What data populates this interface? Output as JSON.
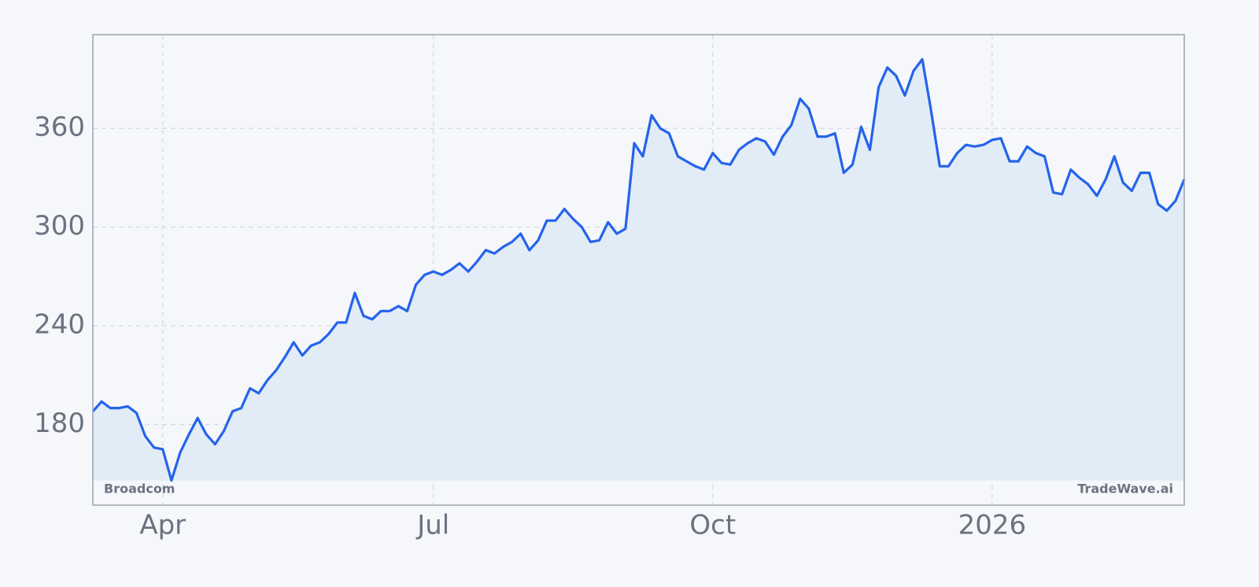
{
  "chart_data": {
    "type": "line",
    "categories": [
      null,
      null,
      null,
      null,
      null,
      null,
      null,
      null,
      "Apr",
      null,
      null,
      null,
      null,
      null,
      null,
      null,
      null,
      null,
      null,
      null,
      null,
      null,
      null,
      null,
      null,
      null,
      null,
      null,
      null,
      null,
      null,
      null,
      null,
      null,
      null,
      null,
      null,
      null,
      null,
      "Jul",
      null,
      null,
      null,
      null,
      null,
      null,
      null,
      null,
      null,
      null,
      null,
      null,
      null,
      null,
      null,
      null,
      null,
      null,
      null,
      null,
      null,
      null,
      null,
      null,
      null,
      null,
      null,
      null,
      null,
      null,
      null,
      "Oct",
      null,
      null,
      null,
      null,
      null,
      null,
      null,
      null,
      null,
      null,
      null,
      null,
      null,
      null,
      null,
      null,
      null,
      null,
      null,
      null,
      null,
      null,
      null,
      null,
      null,
      null,
      null,
      null,
      null,
      null,
      null,
      "2026",
      null,
      null,
      null,
      null,
      null,
      null,
      null,
      null,
      null,
      null,
      null,
      null,
      null,
      null,
      null,
      null,
      null,
      null,
      null,
      null,
      null,
      null
    ],
    "values": [
      188,
      194,
      190,
      190,
      191,
      187,
      173,
      166,
      165,
      146,
      163,
      174,
      184,
      174,
      168,
      176,
      188,
      190,
      202,
      199,
      207,
      213,
      221,
      230,
      222,
      228,
      230,
      235,
      242,
      242,
      260,
      246,
      244,
      249,
      249,
      252,
      249,
      265,
      271,
      273,
      271,
      274,
      278,
      273,
      279,
      286,
      284,
      288,
      291,
      296,
      286,
      292,
      304,
      304,
      311,
      305,
      300,
      291,
      292,
      303,
      296,
      299,
      351,
      343,
      368,
      360,
      357,
      343,
      340,
      337,
      335,
      345,
      339,
      338,
      347,
      351,
      354,
      352,
      344,
      355,
      362,
      378,
      372,
      355,
      355,
      357,
      333,
      338,
      361,
      347,
      385,
      397,
      392,
      380,
      395,
      402,
      371,
      337,
      337,
      345,
      350,
      349,
      350,
      353,
      354,
      340,
      340,
      349,
      345,
      343,
      321,
      320,
      335,
      330,
      326,
      319,
      329,
      343,
      327,
      322,
      333,
      333,
      314,
      310,
      316,
      329
    ],
    "color": "#2563eb",
    "fill_color": "#e1ecf7",
    "ylim": [
      131,
      417
    ],
    "yticks": [
      180,
      240,
      300,
      360
    ],
    "grid": true,
    "label": "Broadcom",
    "watermark": "TradeWave.ai"
  }
}
